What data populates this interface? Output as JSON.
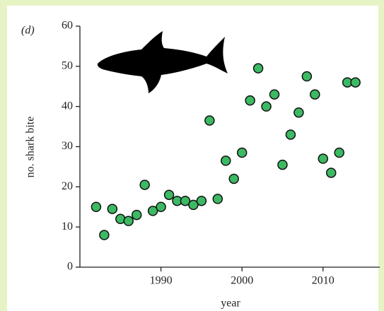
{
  "chart_data": {
    "type": "scatter",
    "panel_label": "(d)",
    "x_label": "year",
    "y_label": "no. shark bite",
    "x": [
      1982,
      1983,
      1984,
      1985,
      1986,
      1987,
      1988,
      1989,
      1990,
      1991,
      1992,
      1993,
      1994,
      1995,
      1996,
      1997,
      1998,
      1999,
      2000,
      2001,
      2002,
      2003,
      2004,
      2005,
      2006,
      2007,
      2008,
      2009,
      2010,
      2011,
      2012,
      2013,
      2014
    ],
    "values": [
      15,
      8,
      14.5,
      12,
      11.5,
      13,
      20.5,
      14,
      15,
      18,
      16.5,
      16.5,
      15.5,
      16.5,
      36.5,
      17,
      26.5,
      22,
      28.5,
      41.5,
      49.5,
      40,
      43,
      25.5,
      33,
      38.5,
      47.5,
      43,
      27,
      23.5,
      28.5,
      46,
      46
    ],
    "color": "#3cb963",
    "xlim": [
      1980,
      2017
    ],
    "ylim": [
      0,
      60
    ],
    "xticks": [
      1990,
      2000,
      2010
    ],
    "yticks": [
      0,
      10,
      20,
      30,
      40,
      50,
      60
    ]
  }
}
